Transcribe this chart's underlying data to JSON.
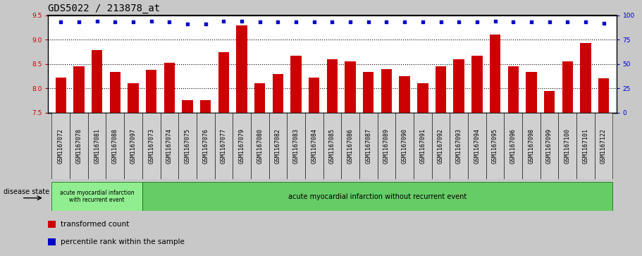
{
  "title": "GDS5022 / 213878_at",
  "samples": [
    "GSM1167072",
    "GSM1167078",
    "GSM1167081",
    "GSM1167088",
    "GSM1167097",
    "GSM1167073",
    "GSM1167074",
    "GSM1167075",
    "GSM1167076",
    "GSM1167077",
    "GSM1167079",
    "GSM1167080",
    "GSM1167082",
    "GSM1167083",
    "GSM1167084",
    "GSM1167085",
    "GSM1167086",
    "GSM1167087",
    "GSM1167089",
    "GSM1167090",
    "GSM1167091",
    "GSM1167092",
    "GSM1167093",
    "GSM1167094",
    "GSM1167095",
    "GSM1167096",
    "GSM1167098",
    "GSM1167099",
    "GSM1167100",
    "GSM1167101",
    "GSM1167122"
  ],
  "bar_values": [
    8.22,
    8.45,
    8.78,
    8.33,
    8.1,
    8.38,
    8.53,
    7.75,
    7.75,
    8.75,
    9.3,
    8.1,
    8.3,
    8.67,
    8.22,
    8.6,
    8.55,
    8.33,
    8.4,
    8.25,
    8.1,
    8.45,
    8.6,
    8.67,
    9.1,
    8.45,
    8.33,
    7.95,
    8.55,
    8.93,
    8.2
  ],
  "percentile_values": [
    93,
    93,
    94,
    93,
    93,
    94,
    93,
    91,
    91,
    94,
    94,
    93,
    93,
    93,
    93,
    93,
    93,
    93,
    93,
    93,
    93,
    93,
    93,
    93,
    94,
    93,
    93,
    93,
    93,
    93,
    92
  ],
  "bar_color": "#cc0000",
  "percentile_color": "#0000cc",
  "ylim_left": [
    7.5,
    9.5
  ],
  "ylim_right": [
    0,
    100
  ],
  "yticks_left": [
    7.5,
    8.0,
    8.5,
    9.0,
    9.5
  ],
  "yticks_right": [
    0,
    25,
    50,
    75,
    100
  ],
  "grid_values": [
    8.0,
    8.5,
    9.0
  ],
  "group1_count": 5,
  "group1_label": "acute myocardial infarction\nwith recurrent event",
  "group2_label": "acute myocardial infarction without recurrent event",
  "group_color": "#77dd77",
  "group1_border_color": "#006600",
  "disease_state_label": "disease state",
  "legend_bar_label": "transformed count",
  "legend_dot_label": "percentile rank within the sample",
  "bg_color": "#c8c8c8",
  "plot_bg_color": "#ffffff",
  "ticklabel_bg_color": "#c8c8c8",
  "title_fontsize": 10,
  "tick_fontsize": 6.5,
  "label_fontsize": 7.5
}
